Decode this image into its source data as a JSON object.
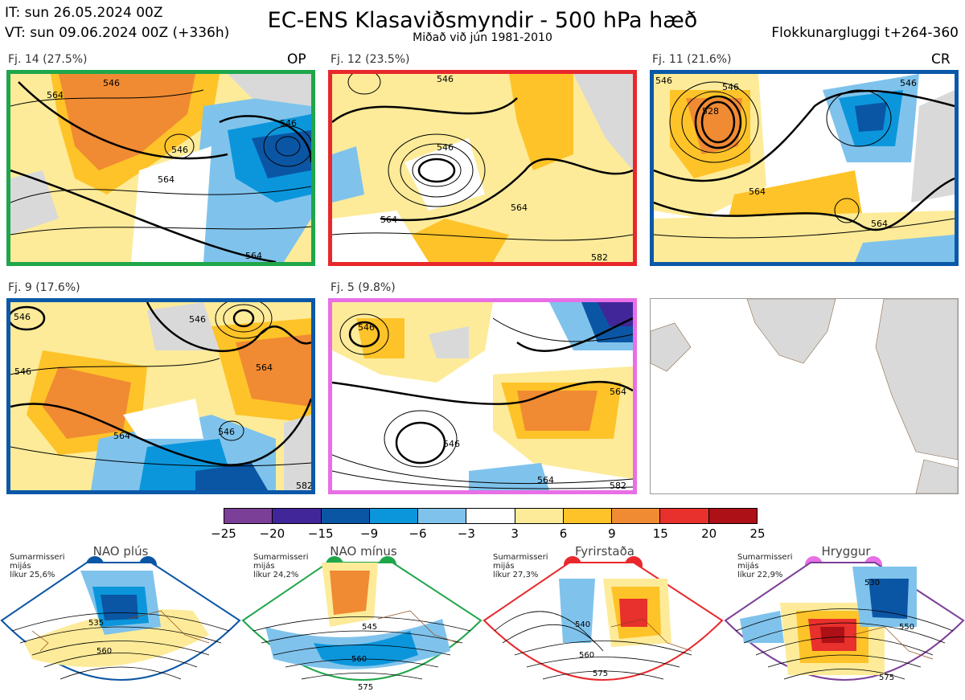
{
  "header": {
    "it": "IT: sun 26.05.2024 00Z",
    "vt": "VT: sun 09.06.2024 00Z  (+336h)",
    "title": "EC-ENS Klasaviðsmyndir - 500 hPa hæð",
    "subtitle": "Miðað við jún 1981-2010",
    "window": "Flokkunargluggi t+264-360"
  },
  "panels": [
    {
      "label": "Fj. 14 (27.5%)",
      "tag": "OP",
      "border": "#1fa64a",
      "contours": [
        "546",
        "546",
        "546",
        "564",
        "564",
        "564"
      ]
    },
    {
      "label": "Fj. 12 (23.5%)",
      "tag": "",
      "border": "#e8282c",
      "contours": [
        "546",
        "546",
        "564",
        "564",
        "582"
      ]
    },
    {
      "label": "Fj. 11 (21.6%)",
      "tag": "CR",
      "border": "#0b58a8",
      "contours": [
        "528",
        "546",
        "546",
        "546",
        "564",
        "564"
      ]
    },
    {
      "label": "Fj. 9 (17.6%)",
      "tag": "",
      "border": "#0b58a8",
      "contours": [
        "546",
        "546",
        "546",
        "546",
        "564",
        "564",
        "582"
      ]
    },
    {
      "label": "Fj. 5 (9.8%)",
      "tag": "",
      "border": "#e86fe6",
      "contours": [
        "546",
        "546",
        "564",
        "564",
        "582"
      ]
    }
  ],
  "colorbar": {
    "colors": [
      "#7b3f98",
      "#41269a",
      "#0b56a4",
      "#0b96dc",
      "#7fc3ec",
      "#ffffff",
      "#fdeb99",
      "#fec328",
      "#f08a33",
      "#e8302c",
      "#ad1016"
    ],
    "ticks": [
      "−25",
      "−20",
      "−15",
      "−9",
      "−6",
      "−3",
      "3",
      "6",
      "9",
      "15",
      "20",
      "25"
    ]
  },
  "regimes": [
    {
      "title": "NAO plús",
      "note": [
        "Sumarmisseri",
        "mijás",
        "líkur 25,6%"
      ],
      "color": "#0b56a4",
      "contours": [
        "535",
        "560"
      ]
    },
    {
      "title": "NAO mínus",
      "note": [
        "Sumarmisseri",
        "mijás",
        "líkur 24,2%"
      ],
      "color": "#1fa64a",
      "contours": [
        "545",
        "560",
        "575"
      ]
    },
    {
      "title": "Fyrirstaða",
      "note": [
        "Sumarmisseri",
        "mijás",
        "líkur 27,3%"
      ],
      "color": "#e8282c",
      "contours": [
        "540",
        "560",
        "575"
      ]
    },
    {
      "title": "Hryggur",
      "note": [
        "Sumarmisseri",
        "mijás",
        "líkur 22,9%"
      ],
      "color": "#e86fe6",
      "contours": [
        "530",
        "550",
        "575"
      ]
    }
  ]
}
